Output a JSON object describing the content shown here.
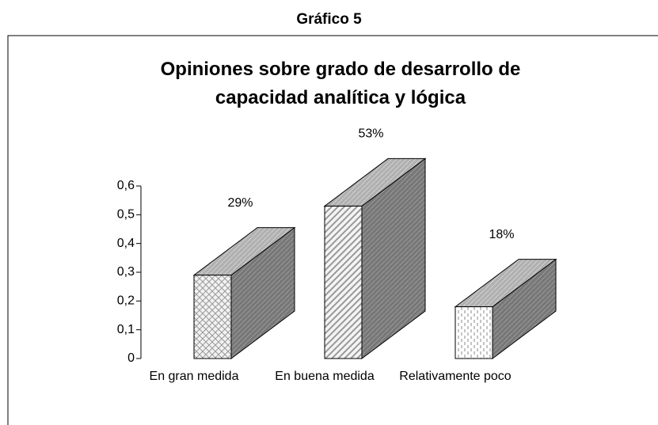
{
  "header": "Gráfico 5",
  "chart_data": {
    "type": "bar3d",
    "title": "Opiniones sobre grado de desarrollo de capacidad analítica y lógica",
    "categories": [
      "En gran medida",
      "En buena medida",
      "Relativamente poco"
    ],
    "values": [
      0.29,
      0.53,
      0.18
    ],
    "value_labels": [
      "29%",
      "53%",
      "18%"
    ],
    "ylim": [
      0,
      0.6
    ],
    "yticks": [
      0,
      {
        "value": 0.1,
        "label": "0,1"
      },
      {
        "value": 0.2,
        "label": "0,2"
      },
      {
        "value": 0.3,
        "label": "0,3"
      },
      {
        "value": 0.4,
        "label": "0,4"
      },
      {
        "value": 0.5,
        "label": "0,5"
      },
      {
        "value": 0.6,
        "label": "0,6"
      }
    ],
    "grid": false
  }
}
